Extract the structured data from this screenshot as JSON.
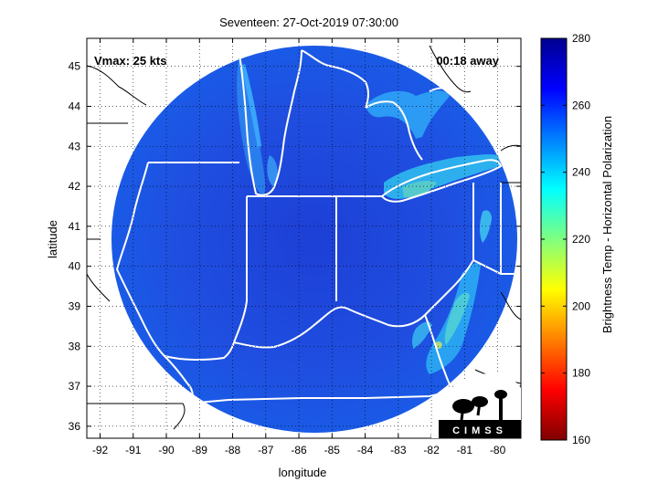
{
  "title": "Seventeen: 27-Oct-2019 07:30:00",
  "vmax_label": "Vmax: 25 kts",
  "time_away_label": "00:18 away",
  "xlabel": "longitude",
  "ylabel": "latitude",
  "x_ticks": [
    "-92",
    "-91",
    "-90",
    "-89",
    "-88",
    "-87",
    "-86",
    "-85",
    "-84",
    "-83",
    "-82",
    "-81",
    "-80"
  ],
  "y_ticks": [
    "36",
    "37",
    "38",
    "39",
    "40",
    "41",
    "42",
    "43",
    "44",
    "45"
  ],
  "colorbar": {
    "label": "Brightness Temp - Horizontal Polarization",
    "ticks": [
      "160",
      "180",
      "200",
      "220",
      "240",
      "260",
      "280"
    ],
    "min": 160,
    "max": 280,
    "colors": [
      "#7f0000",
      "#ff0000",
      "#ffff00",
      "#00ffff",
      "#0000ff",
      "#00008f"
    ]
  },
  "logo": {
    "text": "CIMSS"
  },
  "map": {
    "lon_range": [
      -92.4,
      -79.3
    ],
    "lat_range": [
      35.7,
      45.7
    ],
    "swath_center": [
      -85.2,
      40.6
    ],
    "swath_color": "#1f4fe0",
    "background_color": "#ffffff"
  }
}
